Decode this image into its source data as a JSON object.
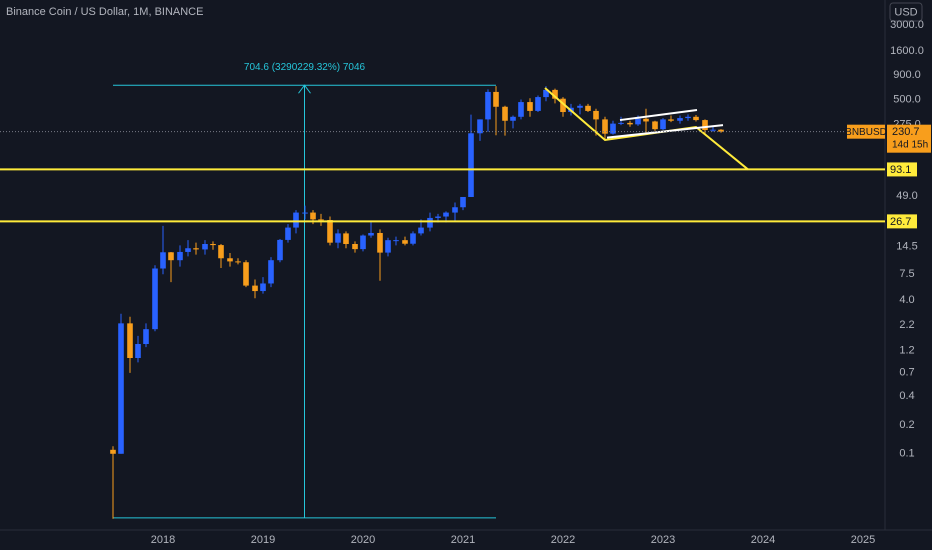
{
  "chart_data": {
    "type": "candlestick",
    "title": "Binance Coin / US Dollar, 1M, BINANCE",
    "currency": "USD",
    "log_scale": true,
    "grid": false,
    "up_color": "#2962ff",
    "down_color": "#f89e1c",
    "x": [
      2017.5,
      2017.58,
      2017.67,
      2017.75,
      2017.83,
      2017.92,
      2018.0,
      2018.08,
      2018.17,
      2018.25,
      2018.33,
      2018.42,
      2018.5,
      2018.58,
      2018.67,
      2018.75,
      2018.83,
      2018.92,
      2019.0,
      2019.08,
      2019.17,
      2019.25,
      2019.33,
      2019.42,
      2019.5,
      2019.58,
      2019.67,
      2019.75,
      2019.83,
      2019.92,
      2020.0,
      2020.08,
      2020.17,
      2020.25,
      2020.33,
      2020.42,
      2020.5,
      2020.58,
      2020.67,
      2020.75,
      2020.83,
      2020.92,
      2021.0,
      2021.08,
      2021.17,
      2021.25,
      2021.33,
      2021.42,
      2021.5,
      2021.58,
      2021.67,
      2021.75,
      2021.83,
      2021.92,
      2022.0,
      2022.08,
      2022.17,
      2022.25,
      2022.33,
      2022.42,
      2022.5,
      2022.58,
      2022.67,
      2022.75,
      2022.83,
      2022.92,
      2023.0,
      2023.08,
      2023.17,
      2023.25,
      2023.33,
      2023.42,
      2023.5,
      2023.58
    ],
    "open": [
      0.11,
      0.1,
      2.3,
      1.0,
      1.4,
      2.0,
      8.6,
      12.7,
      10.5,
      12.8,
      14,
      13.6,
      15.5,
      15.1,
      11,
      10.2,
      10,
      5.7,
      5.0,
      6,
      10.5,
      17.1,
      23,
      33,
      33,
      28,
      27.6,
      16,
      20,
      15.5,
      13.7,
      19,
      20.2,
      12.6,
      17,
      17,
      15.6,
      20,
      23,
      29,
      30,
      33,
      37.5,
      48,
      222,
      310,
      600,
      420,
      300,
      330,
      470,
      380,
      530,
      630,
      510,
      370,
      410,
      430,
      380,
      310,
      220,
      280,
      285,
      275,
      315,
      295,
      245,
      310,
      300,
      320,
      330,
      305,
      240,
      242
    ],
    "high": [
      0.12,
      2.9,
      2.7,
      1.7,
      2.3,
      9.3,
      24,
      12.8,
      15,
      17,
      16,
      17,
      16.5,
      15.5,
      12.5,
      11,
      10.5,
      6.6,
      7,
      11.3,
      17.5,
      25,
      35,
      39,
      35,
      32,
      30,
      22,
      21,
      16.5,
      19.5,
      27,
      22,
      18,
      18.5,
      18.5,
      21,
      28,
      33,
      32,
      34,
      42,
      48,
      348,
      310,
      638,
      690,
      430,
      340,
      500,
      515,
      550,
      690,
      650,
      530,
      450,
      450,
      450,
      400,
      330,
      300,
      330,
      300,
      340,
      400,
      300,
      320,
      340,
      340,
      350,
      345,
      310,
      260,
      245
    ],
    "low": [
      0.021,
      0.1,
      0.7,
      0.9,
      1.3,
      1.9,
      7.5,
      6.2,
      9,
      11.5,
      12,
      12,
      13.5,
      8.7,
      9.0,
      9.5,
      5.5,
      4.2,
      4.7,
      5.5,
      10,
      16,
      20,
      28,
      25,
      24,
      15,
      14,
      14,
      12.6,
      13,
      18,
      6.4,
      11.5,
      15,
      15,
      15,
      19,
      21,
      26,
      26,
      27,
      35,
      48,
      185,
      230,
      212,
      210,
      250,
      310,
      330,
      370,
      480,
      455,
      330,
      340,
      350,
      370,
      210,
      185,
      215,
      270,
      260,
      265,
      225,
      235,
      240,
      290,
      280,
      300,
      295,
      220,
      230,
      225
    ],
    "close": [
      0.1,
      2.3,
      1.0,
      1.4,
      2.0,
      8.6,
      12.7,
      10.5,
      12.8,
      14,
      13.6,
      15.5,
      15.1,
      11,
      10.2,
      10,
      5.7,
      5.0,
      6,
      10.5,
      17.1,
      23,
      33,
      33,
      28,
      27.6,
      16,
      20,
      15.5,
      13.7,
      19,
      20.2,
      12.6,
      17,
      17,
      15.6,
      20,
      23,
      29,
      30,
      33,
      37.5,
      48,
      222,
      310,
      600,
      420,
      300,
      330,
      470,
      380,
      530,
      630,
      510,
      370,
      410,
      430,
      380,
      310,
      220,
      280,
      285,
      275,
      315,
      295,
      245,
      310,
      300,
      320,
      330,
      305,
      240,
      242,
      230.7
    ],
    "xlim": [
      2016.37,
      2025.22
    ],
    "xticks": [
      2018,
      2019,
      2020,
      2021,
      2022,
      2023,
      2024,
      2025
    ],
    "ylim": [
      0.016,
      5470
    ],
    "yticks": [
      {
        "value": 3000,
        "label": "3000.0"
      },
      {
        "value": 1600,
        "label": "1600.0"
      },
      {
        "value": 900,
        "label": "900.0"
      },
      {
        "value": 500,
        "label": "500.0"
      },
      {
        "value": 275,
        "label": "275.0"
      },
      {
        "value": 49,
        "label": "49.0"
      },
      14.5,
      7.5,
      {
        "value": 4,
        "label": "4.0"
      },
      2.2,
      1.2,
      0.7,
      0.4,
      0.2,
      0.1
    ],
    "hlines": [
      {
        "value": 93.1,
        "color": "#ffeb3b"
      },
      {
        "value": 26.7,
        "color": "#ffeb3b"
      }
    ],
    "price": {
      "symbol": "BNBUSD",
      "last": 230.7,
      "countdown": "14d 15h",
      "color": "#f89e1c"
    },
    "measure": {
      "label": "704.6 (3290229.32%) 7046",
      "color": "#26c6da",
      "x": [
        2017.5,
        2021.33
      ],
      "y": [
        0.0214,
        704.62
      ]
    },
    "drawings": [
      {
        "color": "#ffeb3b",
        "x": [
          2021.82,
          2022.42,
          2023.33,
          2023.85
        ],
        "y": [
          659,
          189,
          258,
          93.1
        ]
      },
      {
        "color": "#ffffff",
        "x": [
          2022.57,
          2023.34
        ],
        "y": [
          305,
          389
        ]
      },
      {
        "color": "#ffffff",
        "x": [
          2022.44,
          2023.6
        ],
        "y": [
          200,
          270
        ]
      }
    ]
  }
}
